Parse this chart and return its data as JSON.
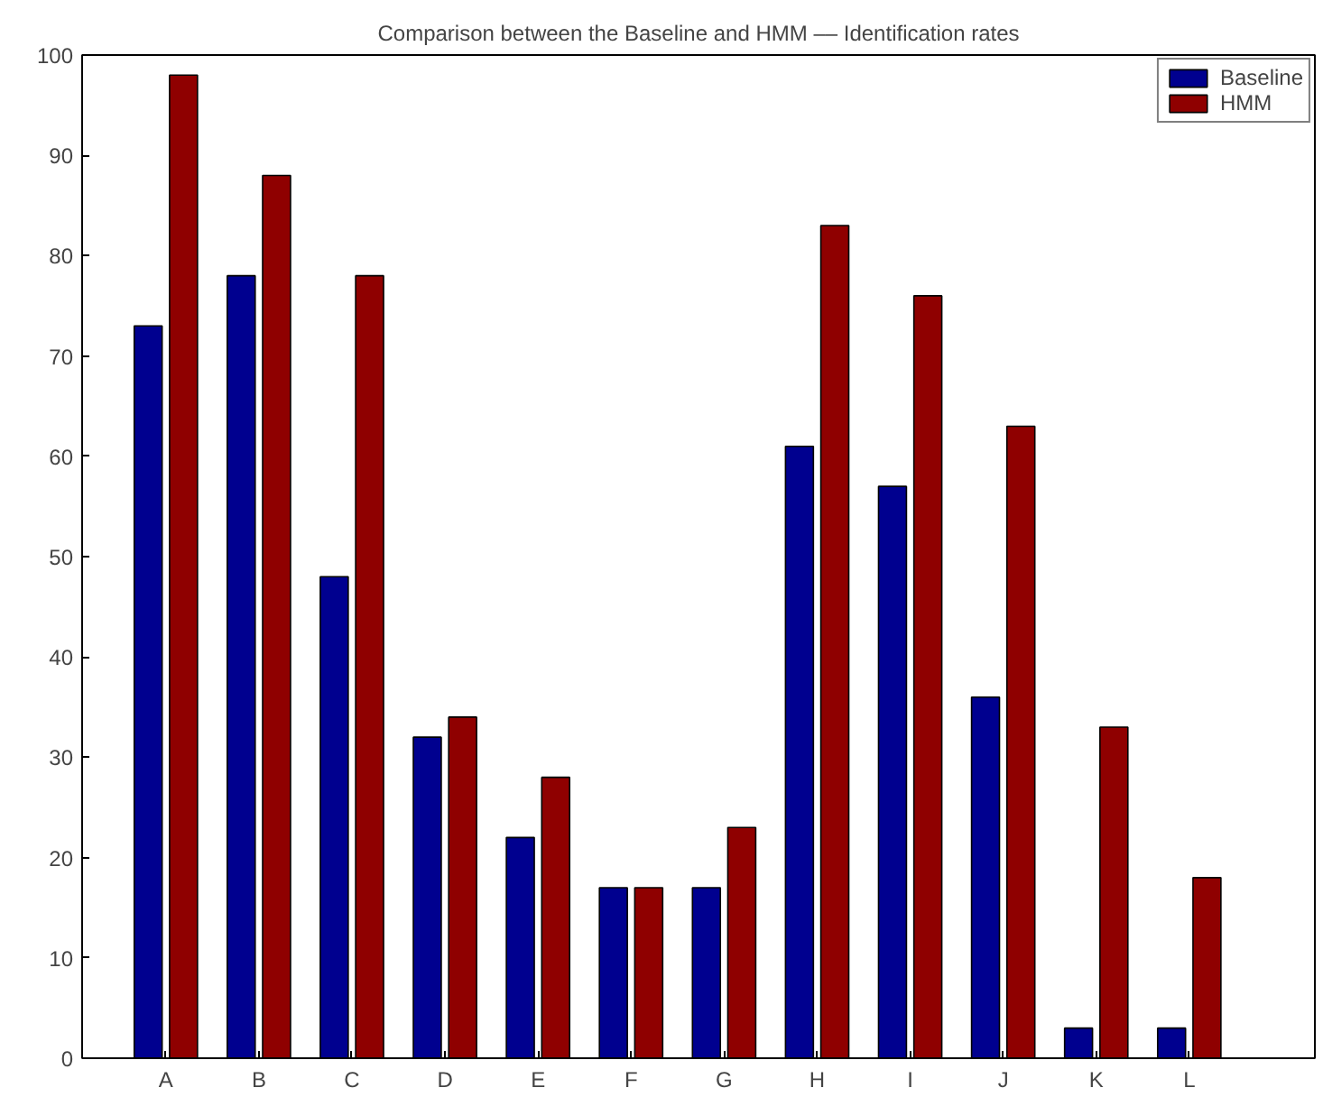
{
  "chart_data": {
    "type": "bar",
    "title": "Comparison between the Baseline and HMM –– Identification rates",
    "categories": [
      "A",
      "B",
      "C",
      "D",
      "E",
      "F",
      "G",
      "H",
      "I",
      "J",
      "K",
      "L"
    ],
    "series": [
      {
        "name": "Baseline",
        "color": "#00008f",
        "values": [
          73,
          78,
          48,
          32,
          22,
          17,
          17,
          61,
          57,
          36,
          3,
          3
        ]
      },
      {
        "name": "HMM",
        "color": "#8f0000",
        "values": [
          98,
          88,
          78,
          34,
          28,
          17,
          23,
          83,
          76,
          63,
          33,
          18
        ]
      }
    ],
    "ylim": [
      0,
      100
    ],
    "yticks": [
      0,
      10,
      20,
      30,
      40,
      50,
      60,
      70,
      80,
      90,
      100
    ],
    "grid": false,
    "legend": "top right"
  }
}
